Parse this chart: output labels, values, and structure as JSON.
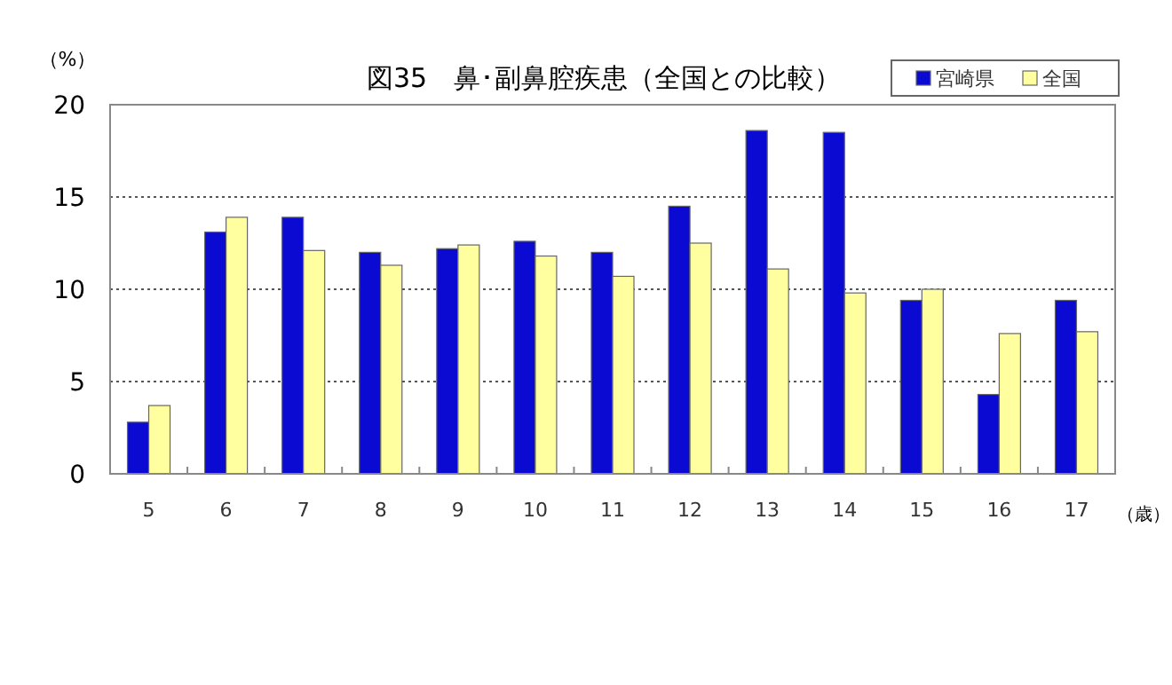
{
  "chart_data": {
    "type": "bar",
    "title": "図35　鼻･副鼻腔疾患（全国との比較）",
    "ylabel": "（%）",
    "xlabel": "（歳）",
    "categories": [
      "5",
      "6",
      "7",
      "8",
      "9",
      "10",
      "11",
      "12",
      "13",
      "14",
      "15",
      "16",
      "17"
    ],
    "series": [
      {
        "name": "宮崎県",
        "color": "#0a0ad2",
        "values": [
          2.8,
          13.1,
          13.9,
          12.0,
          12.2,
          12.6,
          12.0,
          14.5,
          18.6,
          18.5,
          9.4,
          4.3,
          9.4
        ]
      },
      {
        "name": "全国",
        "color": "#ffffa0",
        "values": [
          3.7,
          13.9,
          12.1,
          11.3,
          12.4,
          11.8,
          10.7,
          12.5,
          11.1,
          9.8,
          10.0,
          7.6,
          7.7
        ]
      }
    ],
    "ylim": [
      0,
      20
    ],
    "yticks": [
      0,
      5,
      10,
      15,
      20
    ],
    "grid": "y",
    "legend": "top right"
  }
}
